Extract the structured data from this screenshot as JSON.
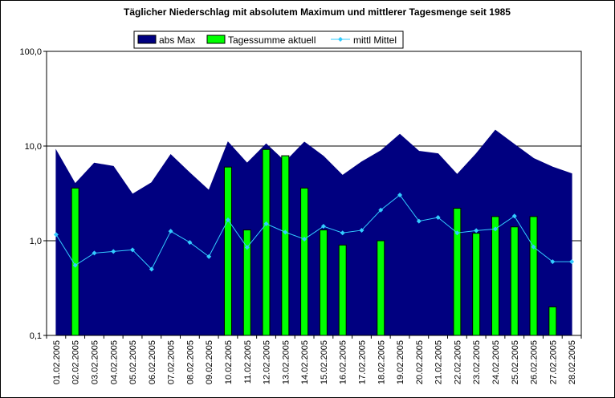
{
  "chart_data": {
    "type": "bar",
    "title": "Täglicher Niederschlag mit absolutem Maximum und mittlerer Tagesmenge seit 1985",
    "xlabel": "",
    "ylabel": "",
    "yscale": "log",
    "ylim": [
      0.1,
      100
    ],
    "yticks": [
      "0,1",
      "1,0",
      "10,0",
      "100,0"
    ],
    "grid": "horizontal major",
    "legend": "top",
    "categories": [
      "01.02.2005",
      "02.02.2005",
      "03.02.2005",
      "04.02.2005",
      "05.02.2005",
      "06.02.2005",
      "07.02.2005",
      "08.02.2005",
      "09.02.2005",
      "10.02.2005",
      "11.02.2005",
      "12.02.2005",
      "13.02.2005",
      "14.02.2005",
      "15.02.2005",
      "16.02.2005",
      "17.02.2005",
      "18.02.2005",
      "19.02.2005",
      "20.02.2005",
      "21.02.2005",
      "22.02.2005",
      "23.02.2005",
      "24.02.2005",
      "25.02.2005",
      "26.02.2005",
      "27.02.2005",
      "28.02.2005"
    ],
    "series": [
      {
        "name": "abs Max",
        "kind": "area",
        "color": "#000080",
        "values": [
          9.0,
          4.0,
          6.6,
          6.1,
          3.1,
          4.1,
          8.1,
          5.2,
          3.4,
          11.0,
          6.6,
          10.5,
          6.8,
          11.0,
          7.8,
          4.9,
          6.8,
          8.9,
          13.3,
          8.8,
          8.3,
          5.0,
          8.3,
          14.7,
          10.4,
          7.4,
          6.0,
          5.1
        ]
      },
      {
        "name": "Tagessumme aktuell",
        "kind": "bar",
        "color": "#00ff00",
        "values": [
          null,
          3.6,
          null,
          null,
          null,
          null,
          null,
          null,
          null,
          6.0,
          1.3,
          9.2,
          7.9,
          3.6,
          1.3,
          0.9,
          null,
          1.0,
          null,
          null,
          null,
          2.2,
          1.2,
          1.8,
          1.4,
          1.8,
          0.2,
          null
        ]
      },
      {
        "name": "mittl Mittel",
        "kind": "line",
        "color": "#33ccff",
        "values": [
          1.16,
          0.55,
          0.74,
          0.77,
          0.8,
          0.5,
          1.26,
          0.96,
          0.68,
          1.66,
          0.85,
          1.51,
          1.23,
          1.04,
          1.42,
          1.21,
          1.29,
          2.11,
          3.04,
          1.61,
          1.76,
          1.21,
          1.28,
          1.33,
          1.82,
          0.86,
          0.6,
          0.6
        ]
      }
    ]
  }
}
